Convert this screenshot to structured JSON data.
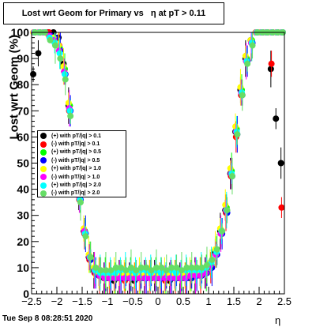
{
  "title": "Lost wrt Geom for Primary vs   η at pT > 0.11",
  "timestamp": "Tue Sep  8 08:28:51 2020",
  "chart_data": {
    "type": "scatter",
    "title": "Lost wrt Geom for Primary vs   η at pT > 0.11",
    "xlabel": "η",
    "ylabel": "Lost wrt Geom (%)",
    "xlim": [
      -2.5,
      2.5
    ],
    "ylim": [
      0,
      100
    ],
    "xticks": [
      "−2.5",
      "−2",
      "−1.5",
      "−1",
      "−0.5",
      "0",
      "0.5",
      "1",
      "1.5",
      "2",
      "2.5"
    ],
    "yticks": [
      "0",
      "10",
      "20",
      "30",
      "40",
      "50",
      "60",
      "70",
      "80",
      "90",
      "100"
    ],
    "legend_position": "left-middle",
    "grid": false,
    "x": [
      -2.45,
      -2.35,
      -2.25,
      -2.15,
      -2.05,
      -1.95,
      -1.85,
      -1.75,
      -1.65,
      -1.55,
      -1.45,
      -1.35,
      -1.25,
      -1.15,
      -1.05,
      -0.95,
      -0.85,
      -0.75,
      -0.65,
      -0.55,
      -0.45,
      -0.35,
      -0.25,
      -0.15,
      -0.05,
      0.05,
      0.15,
      0.25,
      0.35,
      0.45,
      0.55,
      0.65,
      0.75,
      0.85,
      0.95,
      1.05,
      1.15,
      1.25,
      1.35,
      1.45,
      1.55,
      1.65,
      1.75,
      1.85,
      1.95,
      2.05,
      2.15,
      2.25,
      2.35,
      2.45
    ],
    "series": [
      {
        "name": "(+) with pT/|q| > 0.1",
        "color": "#000000",
        "values": [
          84,
          92,
          100,
          100,
          100,
          98,
          88,
          72,
          55,
          38,
          24,
          14,
          9,
          7,
          6,
          6,
          5,
          6,
          6,
          6,
          5,
          6,
          6,
          7,
          7,
          6,
          6,
          5,
          6,
          6,
          6,
          6,
          7,
          7,
          8,
          11,
          16,
          24,
          32,
          46,
          62,
          78,
          90,
          97,
          100,
          100,
          100,
          86,
          67,
          50
        ]
      },
      {
        "name": "(-) with pT/|q| > 0.1",
        "color": "#ff0000",
        "values": [
          100,
          100,
          100,
          100,
          98,
          95,
          85,
          70,
          52,
          36,
          23,
          13,
          8,
          7,
          6,
          6,
          6,
          6,
          5,
          6,
          6,
          6,
          7,
          6,
          7,
          6,
          5,
          6,
          6,
          6,
          6,
          7,
          7,
          7,
          8,
          10,
          15,
          23,
          31,
          45,
          60,
          76,
          89,
          96,
          100,
          100,
          100,
          88,
          100,
          33
        ]
      },
      {
        "name": "(+) with pT/|q| > 0.5",
        "color": "#00ff00",
        "values": [
          100,
          100,
          100,
          98,
          97,
          94,
          86,
          72,
          54,
          38,
          24,
          14,
          9,
          8,
          7,
          6,
          6,
          7,
          6,
          7,
          6,
          6,
          7,
          7,
          7,
          7,
          6,
          6,
          7,
          6,
          7,
          7,
          7,
          8,
          8,
          11,
          16,
          24,
          33,
          47,
          63,
          78,
          90,
          97,
          100,
          100,
          100,
          100,
          100,
          100
        ]
      },
      {
        "name": "(-) with pT/|q| > 0.5",
        "color": "#0000ff",
        "values": [
          100,
          100,
          100,
          99,
          98,
          93,
          84,
          70,
          52,
          36,
          23,
          13,
          8,
          7,
          6,
          6,
          6,
          6,
          6,
          6,
          6,
          6,
          6,
          6,
          6,
          6,
          6,
          6,
          6,
          6,
          6,
          6,
          7,
          7,
          8,
          10,
          15,
          23,
          31,
          45,
          61,
          76,
          89,
          96,
          100,
          100,
          100,
          100,
          100,
          100
        ]
      },
      {
        "name": "(+) with pT/|q| > 1.0",
        "color": "#ffff00",
        "values": [
          100,
          100,
          100,
          99,
          98,
          95,
          87,
          73,
          55,
          39,
          25,
          15,
          10,
          8,
          7,
          7,
          7,
          7,
          7,
          7,
          7,
          7,
          7,
          7,
          7,
          7,
          7,
          7,
          7,
          7,
          7,
          7,
          8,
          8,
          9,
          12,
          17,
          25,
          34,
          48,
          64,
          79,
          91,
          97,
          100,
          100,
          100,
          100,
          100,
          100
        ]
      },
      {
        "name": "(-) with pT/|q| > 1.0",
        "color": "#ff00ff",
        "values": [
          100,
          100,
          100,
          99,
          97,
          93,
          85,
          71,
          53,
          37,
          24,
          14,
          9,
          7,
          6,
          6,
          6,
          6,
          6,
          6,
          6,
          6,
          6,
          6,
          6,
          6,
          6,
          6,
          6,
          6,
          6,
          7,
          7,
          7,
          8,
          11,
          15,
          23,
          32,
          46,
          62,
          77,
          89,
          96,
          100,
          100,
          100,
          100,
          100,
          100
        ]
      },
      {
        "name": "(+) with pT/|q| > 2.0",
        "color": "#00ffff",
        "values": [
          100,
          100,
          100,
          98,
          96,
          92,
          84,
          70,
          52,
          36,
          23,
          14,
          9,
          8,
          8,
          8,
          8,
          9,
          9,
          9,
          8,
          9,
          9,
          8,
          9,
          8,
          9,
          9,
          8,
          9,
          9,
          9,
          9,
          9,
          10,
          12,
          16,
          24,
          32,
          46,
          62,
          77,
          89,
          96,
          100,
          100,
          100,
          100,
          100,
          100
        ]
      },
      {
        "name": "(-) with pT/|q| > 2.0",
        "color": "#66dd66",
        "values": [
          100,
          100,
          100,
          97,
          95,
          90,
          82,
          68,
          50,
          35,
          22,
          14,
          10,
          9,
          9,
          9,
          10,
          10,
          9,
          10,
          9,
          10,
          10,
          9,
          10,
          10,
          9,
          10,
          10,
          9,
          10,
          10,
          10,
          10,
          11,
          13,
          17,
          24,
          32,
          45,
          61,
          76,
          88,
          95,
          100,
          100,
          100,
          100,
          100,
          100
        ]
      }
    ]
  }
}
